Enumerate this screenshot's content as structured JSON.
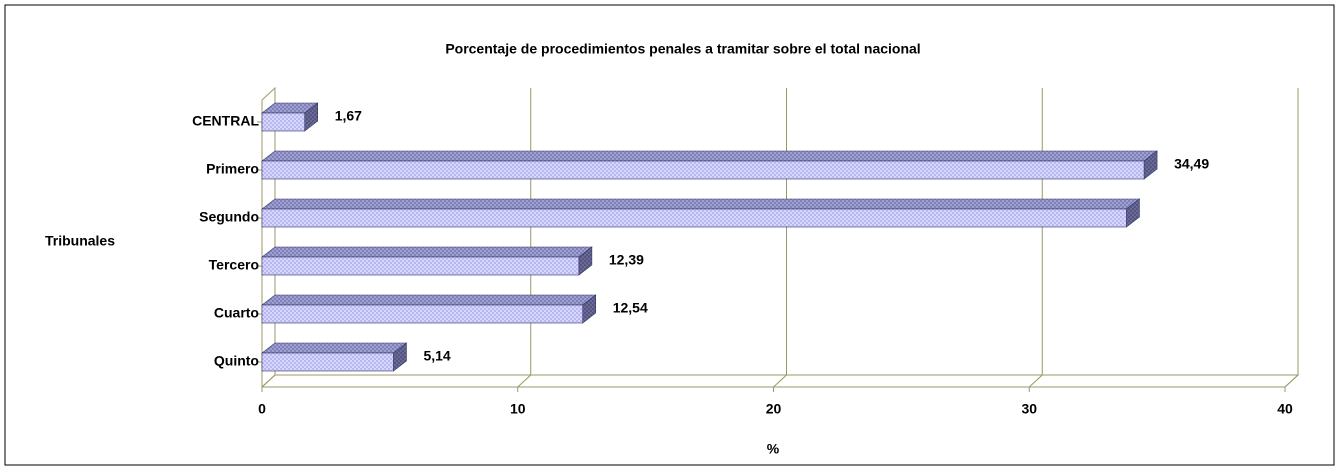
{
  "chart_data": {
    "type": "bar",
    "orientation": "horizontal",
    "title": "Porcentaje de procedimientos penales a tramitar sobre el total nacional",
    "y_label": "Tribunales",
    "x_label": "%",
    "categories": [
      "CENTRAL",
      "Primero",
      "Segundo",
      "Tercero",
      "Cuarto",
      "Quinto"
    ],
    "values": [
      1.67,
      34.49,
      33.8,
      12.39,
      12.54,
      5.14
    ],
    "value_labels": [
      "1,67",
      "34,49",
      null,
      "12,39",
      "12,54",
      "5,14"
    ],
    "color": "#ccccff",
    "xlim": [
      0,
      40
    ],
    "xticks": [
      0,
      10,
      20,
      30,
      40
    ],
    "grid": true
  }
}
